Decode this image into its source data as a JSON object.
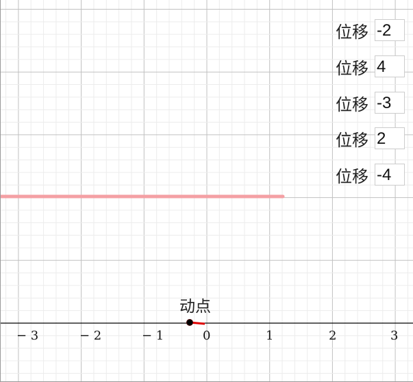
{
  "inputs": [
    {
      "label": "位移",
      "value": "-2"
    },
    {
      "label": "位移",
      "value": "4"
    },
    {
      "label": "位移",
      "value": "-3"
    },
    {
      "label": "位移",
      "value": "2"
    },
    {
      "label": "位移",
      "value": "-4"
    }
  ],
  "point_label": "动点",
  "x_axis_ticks": [
    "− 3",
    "− 2",
    "− 1",
    "0",
    "1",
    "2",
    "3"
  ],
  "colors": {
    "track": "#f4a0a4",
    "point": "#000000",
    "vector": "#e00000",
    "grid_major": "#c0c0c0",
    "grid_minor": "#ececec"
  }
}
